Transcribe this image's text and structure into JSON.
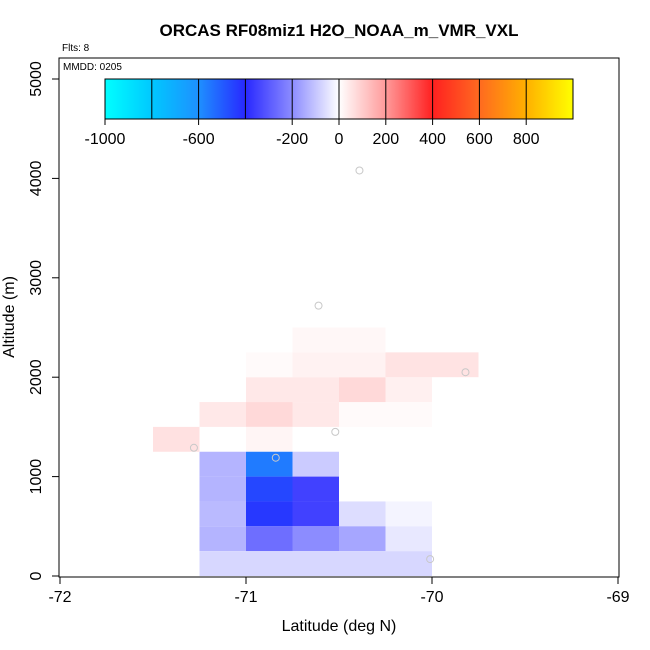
{
  "chart_data": {
    "type": "heatmap",
    "title": "ORCAS RF08miz1 H2O_NOAA_m_VMR_VXL",
    "annotations": [
      "Flts: 8",
      "MMDD: 0205"
    ],
    "xlabel": "Latitude (deg N)",
    "ylabel": "Altitude (m)",
    "xlim": [
      -72,
      -69
    ],
    "ylim": [
      0,
      5200
    ],
    "x_ticks": [
      -72,
      -71,
      -70,
      -69
    ],
    "y_ticks": [
      0,
      1000,
      2000,
      3000,
      4000,
      5000
    ],
    "x_tick_labels": [
      "-72",
      "-71",
      "-70",
      "-69"
    ],
    "y_tick_labels": [
      "0",
      "1000",
      "2000",
      "3000",
      "4000",
      "5000"
    ],
    "cell_size": {
      "dx": 0.25,
      "dz": 250
    },
    "colorbar": {
      "range": [
        -1000,
        1000
      ],
      "ticks": [
        -1000,
        -600,
        -200,
        0,
        200,
        400,
        600,
        800
      ],
      "tick_labels": [
        "-1000",
        "-600",
        "-200",
        "0",
        "200",
        "400",
        "600",
        "800"
      ],
      "boundaries": [
        -1000,
        -800,
        -600,
        -400,
        -200,
        0,
        200,
        400,
        600,
        800,
        1000
      ],
      "stops": [
        {
          "v": -1000,
          "color": "#00ffff"
        },
        {
          "v": -800,
          "color": "#00c8ff"
        },
        {
          "v": -600,
          "color": "#1e90ff"
        },
        {
          "v": -400,
          "color": "#2828ff"
        },
        {
          "v": -200,
          "color": "#8c8cff"
        },
        {
          "v": 0,
          "color": "#ffffff"
        },
        {
          "v": 200,
          "color": "#ff9a9a"
        },
        {
          "v": 400,
          "color": "#ff2020"
        },
        {
          "v": 600,
          "color": "#ff6a20"
        },
        {
          "v": 800,
          "color": "#ffb000"
        },
        {
          "v": 1000,
          "color": "#ffff00"
        }
      ]
    },
    "cells": [
      {
        "lat": -71.375,
        "alt": 1375,
        "value": 60
      },
      {
        "lat": -71.125,
        "alt": 1625,
        "value": 45
      },
      {
        "lat": -70.875,
        "alt": 1625,
        "value": 75
      },
      {
        "lat": -70.625,
        "alt": 1625,
        "value": 45
      },
      {
        "lat": -70.875,
        "alt": 1375,
        "value": 20
      },
      {
        "lat": -70.375,
        "alt": 1625,
        "value": 10
      },
      {
        "lat": -70.125,
        "alt": 1625,
        "value": 10
      },
      {
        "lat": -70.875,
        "alt": 1875,
        "value": 45
      },
      {
        "lat": -70.625,
        "alt": 1875,
        "value": 45
      },
      {
        "lat": -70.375,
        "alt": 1875,
        "value": 75
      },
      {
        "lat": -70.125,
        "alt": 1875,
        "value": 30
      },
      {
        "lat": -70.875,
        "alt": 2125,
        "value": 10
      },
      {
        "lat": -70.625,
        "alt": 2125,
        "value": 25
      },
      {
        "lat": -70.375,
        "alt": 2125,
        "value": 25
      },
      {
        "lat": -70.125,
        "alt": 2125,
        "value": 55
      },
      {
        "lat": -69.875,
        "alt": 2125,
        "value": 55
      },
      {
        "lat": -70.625,
        "alt": 2375,
        "value": 15
      },
      {
        "lat": -70.375,
        "alt": 2375,
        "value": 15
      },
      {
        "lat": -71.125,
        "alt": 1125,
        "value": -130
      },
      {
        "lat": -70.875,
        "alt": 1125,
        "value": -560
      },
      {
        "lat": -70.625,
        "alt": 1125,
        "value": -90
      },
      {
        "lat": -71.125,
        "alt": 875,
        "value": -130
      },
      {
        "lat": -70.875,
        "alt": 875,
        "value": -460
      },
      {
        "lat": -70.625,
        "alt": 875,
        "value": -350
      },
      {
        "lat": -71.125,
        "alt": 625,
        "value": -120
      },
      {
        "lat": -70.875,
        "alt": 625,
        "value": -430
      },
      {
        "lat": -70.625,
        "alt": 625,
        "value": -350
      },
      {
        "lat": -70.375,
        "alt": 625,
        "value": -60
      },
      {
        "lat": -70.125,
        "alt": 625,
        "value": -20
      },
      {
        "lat": -71.125,
        "alt": 375,
        "value": -130
      },
      {
        "lat": -70.875,
        "alt": 375,
        "value": -260
      },
      {
        "lat": -70.625,
        "alt": 375,
        "value": -200
      },
      {
        "lat": -70.375,
        "alt": 375,
        "value": -155
      },
      {
        "lat": -70.125,
        "alt": 375,
        "value": -40
      },
      {
        "lat": -71.125,
        "alt": 125,
        "value": -70
      },
      {
        "lat": -70.875,
        "alt": 125,
        "value": -70
      },
      {
        "lat": -70.625,
        "alt": 125,
        "value": -70
      },
      {
        "lat": -70.375,
        "alt": 125,
        "value": -70
      },
      {
        "lat": -70.125,
        "alt": 125,
        "value": -70
      }
    ],
    "flight_points": [
      {
        "lat": -71.28,
        "alt": 1290
      },
      {
        "lat": -70.84,
        "alt": 1190
      },
      {
        "lat": -70.52,
        "alt": 1450
      },
      {
        "lat": -70.61,
        "alt": 2720
      },
      {
        "lat": -70.39,
        "alt": 4080
      },
      {
        "lat": -69.82,
        "alt": 2050
      },
      {
        "lat": -70.01,
        "alt": 170
      }
    ]
  }
}
